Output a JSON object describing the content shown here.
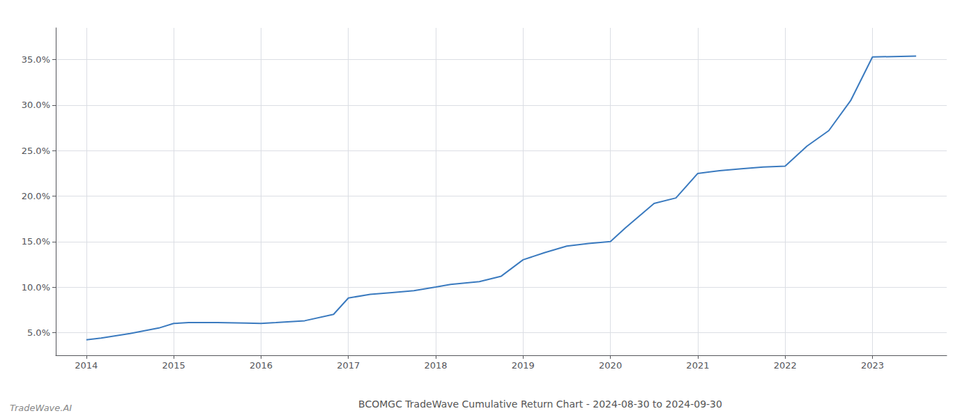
{
  "chart_data": {
    "type": "line",
    "title": "BCOMGC TradeWave Cumulative Return Chart - 2024-08-30 to 2024-09-30",
    "annotations": [
      "TradeWave.AI"
    ],
    "color": "#3a7abf",
    "grid": true,
    "x": [
      2014.0,
      2014.17,
      2014.5,
      2014.83,
      2015.0,
      2015.17,
      2015.5,
      2015.83,
      2016.0,
      2016.17,
      2016.5,
      2016.83,
      2017.0,
      2017.25,
      2017.5,
      2017.75,
      2018.0,
      2018.17,
      2018.5,
      2018.75,
      2019.0,
      2019.25,
      2019.5,
      2019.75,
      2020.0,
      2020.17,
      2020.5,
      2020.75,
      2021.0,
      2021.25,
      2021.5,
      2021.75,
      2022.0,
      2022.25,
      2022.5,
      2022.75,
      2023.0,
      2023.5
    ],
    "values": [
      4.2,
      4.4,
      4.9,
      5.5,
      6.0,
      6.1,
      6.1,
      6.05,
      6.0,
      6.1,
      6.3,
      7.0,
      8.8,
      9.2,
      9.4,
      9.6,
      10.0,
      10.3,
      10.6,
      11.2,
      13.0,
      13.8,
      14.5,
      14.8,
      15.0,
      16.5,
      19.2,
      19.8,
      22.5,
      22.8,
      23.0,
      23.2,
      23.3,
      25.5,
      27.2,
      30.5,
      35.3,
      35.4
    ],
    "xlim": [
      2013.65,
      2023.85
    ],
    "ylim": [
      2.5,
      38.5
    ],
    "xticks": [
      2014,
      2015,
      2016,
      2017,
      2018,
      2019,
      2020,
      2021,
      2022,
      2023
    ],
    "yticks": [
      {
        "value": 5.0,
        "label": "5.0%"
      },
      {
        "value": 10.0,
        "label": "10.0%"
      },
      {
        "value": 15.0,
        "label": "15.0%"
      },
      {
        "value": 20.0,
        "label": "20.0%"
      },
      {
        "value": 25.0,
        "label": "25.0%"
      },
      {
        "value": 30.0,
        "label": "30.0%"
      },
      {
        "value": 35.0,
        "label": "35.0%"
      }
    ]
  }
}
